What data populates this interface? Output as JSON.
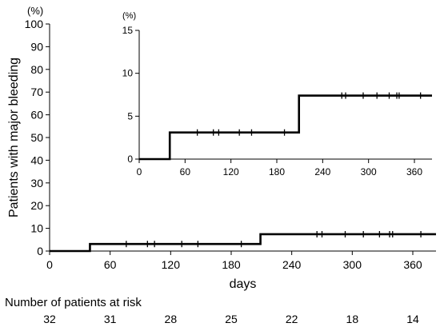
{
  "chart_data": [
    {
      "id": "main",
      "type": "line",
      "step": true,
      "ylabel": "Patients  with  major  bleeding",
      "yunit": "(%)",
      "xlabel": "days",
      "xlim": [
        0,
        383
      ],
      "ylim": [
        0,
        100
      ],
      "xticks": [
        0,
        60,
        120,
        180,
        240,
        300,
        360
      ],
      "yticks": [
        0,
        10,
        20,
        30,
        40,
        50,
        60,
        70,
        80,
        90,
        100
      ],
      "grid": false,
      "series": [
        {
          "steps": [
            [
              0,
              0
            ],
            [
              40,
              3.1
            ],
            [
              209,
              7.4
            ],
            [
              383,
              7.4
            ]
          ],
          "censor_marks": [
            76,
            97,
            104,
            131,
            147,
            190,
            265,
            270,
            293,
            311,
            327,
            337,
            340,
            368
          ]
        }
      ],
      "risk_table": {
        "title": "Number of patients at risk",
        "values": [
          "32",
          "31",
          "28",
          "25",
          "22",
          "18",
          "14"
        ]
      }
    },
    {
      "id": "inset",
      "type": "line",
      "step": true,
      "yunit": "(%)",
      "xlim": [
        0,
        383
      ],
      "ylim": [
        0,
        15
      ],
      "xticks": [
        0,
        60,
        120,
        180,
        240,
        300,
        360
      ],
      "yticks": [
        0,
        5,
        10,
        15
      ],
      "grid": false,
      "series": [
        {
          "steps": [
            [
              0,
              0
            ],
            [
              40,
              3.1
            ],
            [
              209,
              7.4
            ],
            [
              383,
              7.4
            ]
          ],
          "censor_marks": [
            76,
            97,
            104,
            131,
            147,
            190,
            265,
            270,
            293,
            311,
            327,
            337,
            340,
            368
          ]
        }
      ]
    }
  ]
}
